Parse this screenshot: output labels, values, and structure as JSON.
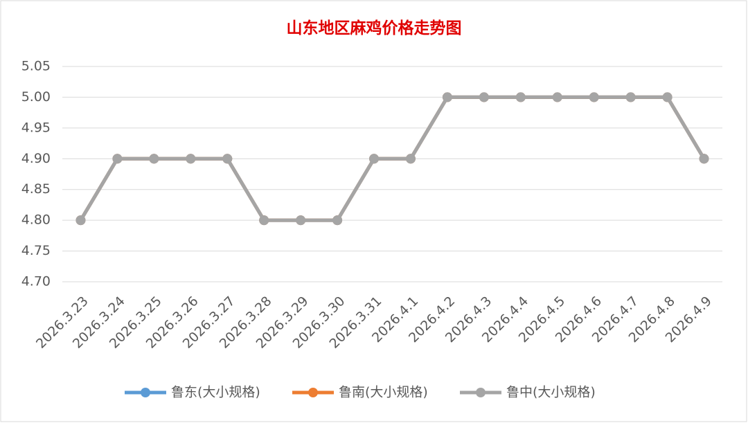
{
  "chart_data": {
    "type": "line",
    "title": "山东地区麻鸡价格走势图",
    "categories": [
      "2026.3.23",
      "2026.3.24",
      "2026.3.25",
      "2026.3.26",
      "2026.3.27",
      "2026.3.28",
      "2026.3.29",
      "2026.3.30",
      "2026.3.31",
      "2026.4.1",
      "2026.4.2",
      "2026.4.3",
      "2026.4.4",
      "2026.4.5",
      "2026.4.6",
      "2026.4.7",
      "2026.4.8",
      "2026.4.9"
    ],
    "series": [
      {
        "name": "鲁东(大小规格)",
        "color": "#5b9bd5",
        "values": [
          4.8,
          4.9,
          4.9,
          4.9,
          4.9,
          4.8,
          4.8,
          4.8,
          4.9,
          4.9,
          5.0,
          5.0,
          5.0,
          5.0,
          5.0,
          5.0,
          5.0,
          4.9
        ]
      },
      {
        "name": "鲁南(大小规格)",
        "color": "#ed7d31",
        "values": [
          4.8,
          4.9,
          4.9,
          4.9,
          4.9,
          4.8,
          4.8,
          4.8,
          4.9,
          4.9,
          5.0,
          5.0,
          5.0,
          5.0,
          5.0,
          5.0,
          5.0,
          4.9
        ]
      },
      {
        "name": "鲁中(大小规格)",
        "color": "#a5a5a5",
        "values": [
          4.8,
          4.9,
          4.9,
          4.9,
          4.9,
          4.8,
          4.8,
          4.8,
          4.9,
          4.9,
          5.0,
          5.0,
          5.0,
          5.0,
          5.0,
          5.0,
          5.0,
          4.9
        ]
      }
    ],
    "ylim": [
      4.7,
      5.05
    ],
    "yticks": [
      {
        "value": 4.7,
        "label": "4.70"
      },
      4.75,
      {
        "value": 4.8,
        "label": "4.80"
      },
      4.85,
      {
        "value": 4.9,
        "label": "4.90"
      },
      4.95,
      {
        "value": 5.0,
        "label": "5.00"
      },
      5.05
    ],
    "grid": true
  }
}
